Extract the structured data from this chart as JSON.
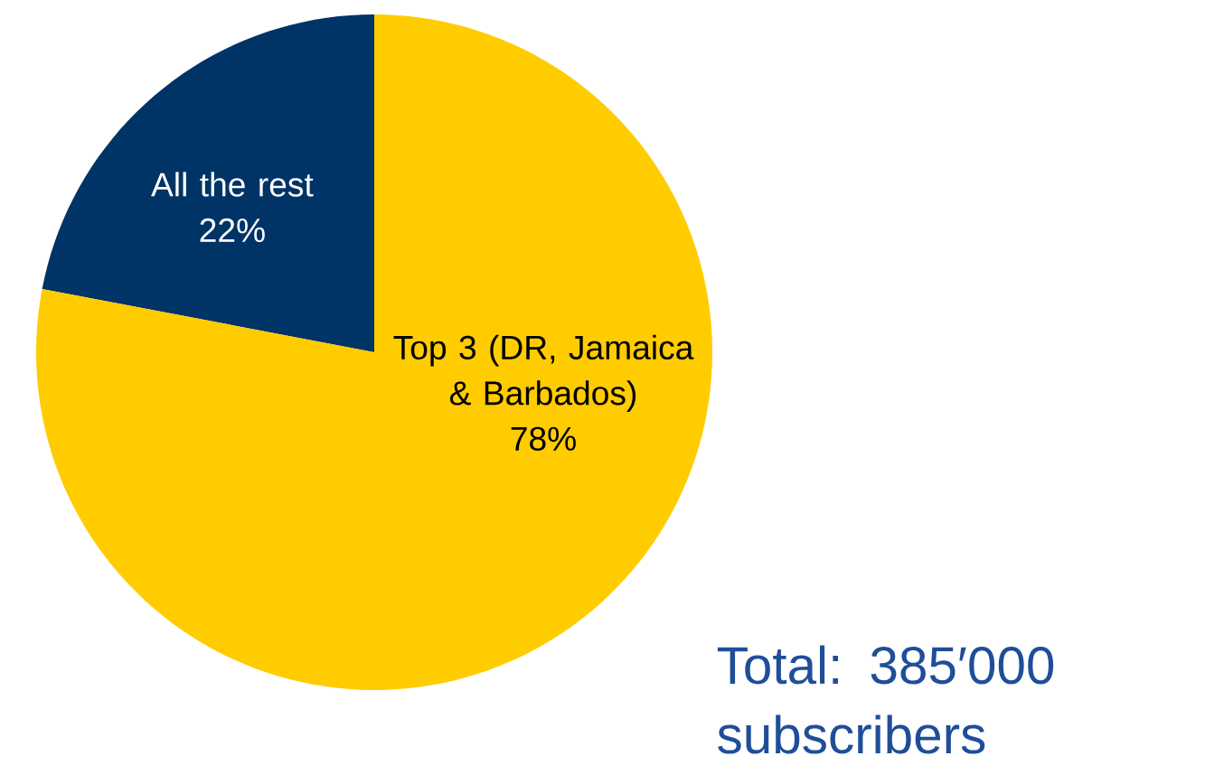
{
  "chart_data": {
    "type": "pie",
    "categories": [
      "All the rest",
      "Top 3 (DR, Jamaica & Barbados)"
    ],
    "values": [
      22,
      78
    ],
    "value_labels": [
      "22%",
      "78%"
    ],
    "colors": [
      "#003366",
      "#ffcc00"
    ],
    "annotations": [
      "Total: 385′000 subscribers"
    ]
  }
}
